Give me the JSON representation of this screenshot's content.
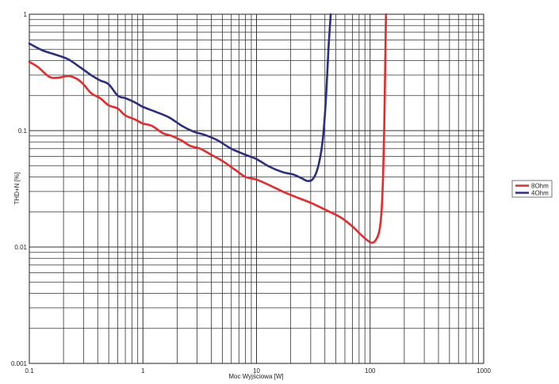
{
  "chart_data": {
    "type": "line",
    "title": "",
    "xlabel": "Moc Wyjściowa [W]",
    "ylabel": "THD+N [%]",
    "x_scale": "log",
    "y_scale": "log",
    "xlim": [
      0.1,
      1000
    ],
    "ylim": [
      0.001,
      1
    ],
    "grid": true,
    "legend_position": "right",
    "x_ticks": [
      {
        "value": 0.1,
        "label": "0.1"
      },
      {
        "value": 1,
        "label": "1"
      },
      {
        "value": 10,
        "label": "10"
      },
      {
        "value": 100,
        "label": "100"
      },
      {
        "value": 1000,
        "label": "1000"
      }
    ],
    "y_ticks": [
      {
        "value": 1,
        "label": "1"
      },
      {
        "value": 0.1,
        "label": "0.1"
      },
      {
        "value": 0.01,
        "label": "0.01"
      },
      {
        "value": 0.001,
        "label": "0.001"
      }
    ],
    "series": [
      {
        "name": "8Ohm",
        "color": "#e8292a",
        "x": [
          0.1,
          0.12,
          0.15,
          0.18,
          0.22,
          0.26,
          0.3,
          0.35,
          0.42,
          0.5,
          0.6,
          0.7,
          0.85,
          1.0,
          1.2,
          1.5,
          1.8,
          2.2,
          2.6,
          3.2,
          4.0,
          5.0,
          6.5,
          8.0,
          10,
          13,
          17,
          22,
          30,
          40,
          55,
          70,
          85,
          100,
          110,
          120,
          126,
          130,
          133,
          136,
          138
        ],
        "y": [
          0.39,
          0.35,
          0.29,
          0.285,
          0.295,
          0.28,
          0.25,
          0.21,
          0.19,
          0.165,
          0.155,
          0.135,
          0.125,
          0.115,
          0.11,
          0.095,
          0.09,
          0.082,
          0.074,
          0.07,
          0.062,
          0.055,
          0.046,
          0.04,
          0.038,
          0.034,
          0.03,
          0.027,
          0.024,
          0.021,
          0.018,
          0.015,
          0.0125,
          0.011,
          0.0112,
          0.0135,
          0.02,
          0.04,
          0.1,
          0.4,
          1.0
        ]
      },
      {
        "name": "4Ohm",
        "color": "#2b2e82",
        "x": [
          0.1,
          0.13,
          0.17,
          0.22,
          0.28,
          0.35,
          0.42,
          0.5,
          0.6,
          0.7,
          0.85,
          1.0,
          1.3,
          1.7,
          2.2,
          2.8,
          3.5,
          4.5,
          6.0,
          8.0,
          10,
          13,
          17,
          21,
          25,
          28,
          31,
          34,
          37,
          39,
          41,
          43,
          45
        ],
        "y": [
          0.56,
          0.49,
          0.45,
          0.41,
          0.35,
          0.3,
          0.27,
          0.25,
          0.2,
          0.19,
          0.175,
          0.16,
          0.145,
          0.13,
          0.11,
          0.098,
          0.092,
          0.083,
          0.07,
          0.062,
          0.057,
          0.049,
          0.044,
          0.042,
          0.039,
          0.037,
          0.038,
          0.045,
          0.065,
          0.1,
          0.2,
          0.5,
          1.0
        ]
      }
    ]
  }
}
